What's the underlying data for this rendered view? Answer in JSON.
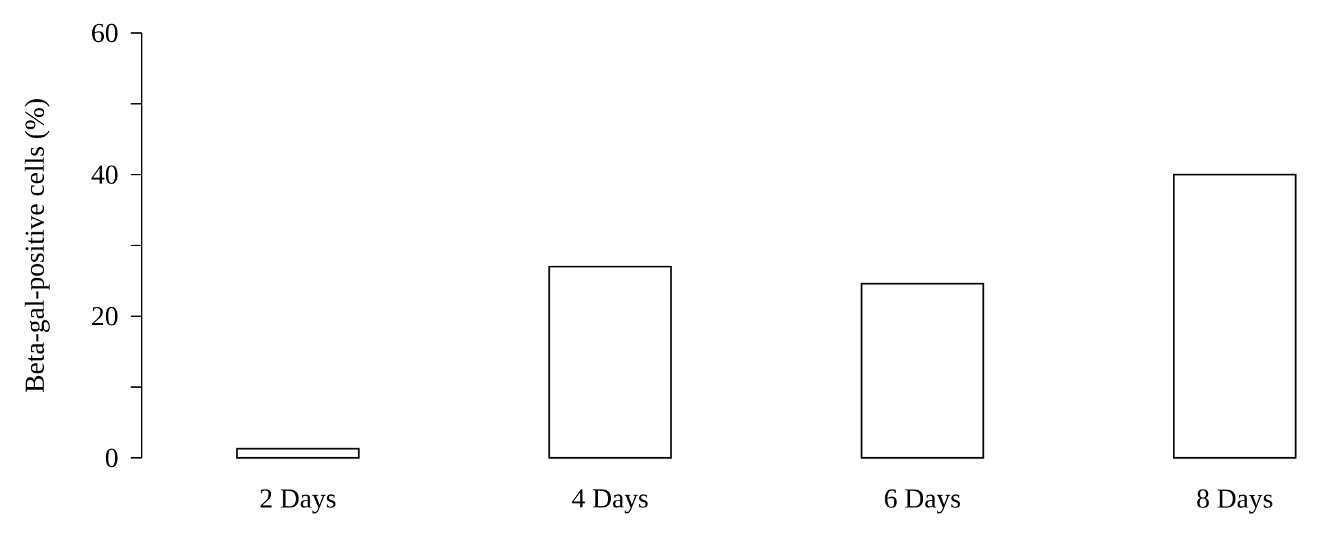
{
  "chart_data": {
    "type": "bar",
    "ylabel": "Beta-gal-positive cells (%)",
    "categories": [
      "2 Days",
      "4 Days",
      "6 Days",
      "8 Days"
    ],
    "values": [
      1.3,
      27.0,
      24.6,
      40.0
    ],
    "color": "#ffffff",
    "ylim": [
      0,
      60
    ],
    "yticks": [
      0,
      {
        "value": 10,
        "label": null
      },
      20,
      {
        "value": 30,
        "label": null
      },
      40,
      {
        "value": 50,
        "label": null
      },
      60
    ],
    "grid": false
  }
}
